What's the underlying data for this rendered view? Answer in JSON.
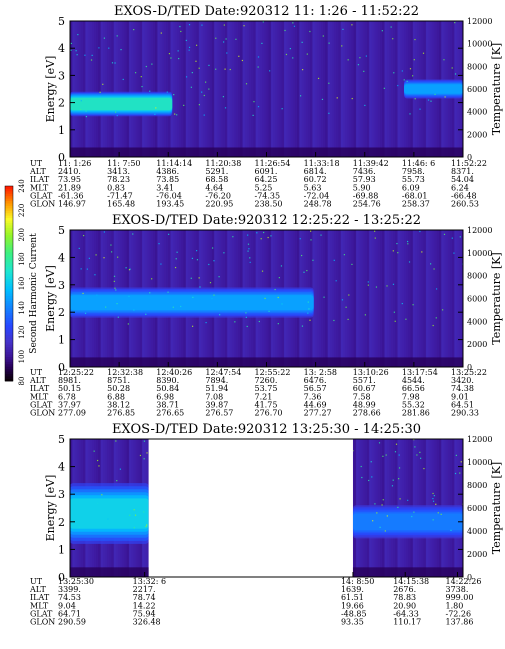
{
  "chart_data": [
    {
      "type": "heatmap",
      "title": "EXOS-D/TED  Date:920312  11: 1:26 - 11:52:22",
      "ylabel_left": "Energy [eV]",
      "ylabel_right": "Temperature [K]",
      "ylim_left": [
        0,
        5
      ],
      "yticks_left": [
        "0",
        "1",
        "2",
        "3",
        "4",
        "5"
      ],
      "ylim_right": [
        0,
        12000
      ],
      "yticks_right": [
        "0",
        "2000",
        "4000",
        "6000",
        "8000",
        "10000",
        "12000"
      ],
      "time_fraction_start": 0,
      "time_fraction_end": 1,
      "table_row_labels": [
        "UT",
        "ALT",
        "ILAT",
        "MLT",
        "GLAT",
        "GLON"
      ],
      "table_columns": [
        [
          "11: 1:26",
          "2410.",
          "73.95",
          "21.89",
          "-61.36",
          "146.97"
        ],
        [
          "11: 7:50",
          "3413.",
          "78.23",
          "0.83",
          "-71.47",
          "165.48"
        ],
        [
          "11:14:14",
          "4386.",
          "73.85",
          "3.41",
          "-76.04",
          "193.45"
        ],
        [
          "11:20:38",
          "5291.",
          "68.58",
          "4.64",
          "-76.20",
          "220.95"
        ],
        [
          "11:26:54",
          "6091.",
          "64.25",
          "5.25",
          "-74.35",
          "238.50"
        ],
        [
          "11:33:18",
          "6814.",
          "60.72",
          "5.63",
          "-72.04",
          "248.78"
        ],
        [
          "11:39:42",
          "7436.",
          "57.93",
          "5.90",
          "-69.88",
          "254.76"
        ],
        [
          "11:46: 6",
          "7958.",
          "55.73",
          "6.09",
          "-68.01",
          "258.37"
        ],
        [
          "11:52:22",
          "8371.",
          "54.04",
          "6.24",
          "-66.48",
          "260.53"
        ]
      ],
      "features": [
        {
          "t0": 0.0,
          "t1": 0.26,
          "center_ev": 1.95,
          "halfwidth_ev": 0.45,
          "level": 175
        },
        {
          "t0": 0.85,
          "t1": 1.0,
          "center_ev": 2.5,
          "halfwidth_ev": 0.35,
          "level": 150
        }
      ]
    },
    {
      "type": "heatmap",
      "title": "EXOS-D/TED  Date:920312  12:25:22 - 13:25:22",
      "ylabel_left": "Energy [eV]",
      "ylabel_right": "Temperature [K]",
      "ylim_left": [
        0,
        5
      ],
      "yticks_left": [
        "0",
        "1",
        "2",
        "3",
        "4",
        "5"
      ],
      "ylim_right": [
        0,
        12000
      ],
      "yticks_right": [
        "0",
        "2000",
        "4000",
        "6000",
        "8000",
        "10000",
        "12000"
      ],
      "time_fraction_start": 0,
      "time_fraction_end": 1,
      "table_row_labels": [
        "UT",
        "ALT",
        "ILAT",
        "MLT",
        "GLAT",
        "GLON"
      ],
      "table_columns": [
        [
          "12:25:22",
          "8981.",
          "50.15",
          "6.78",
          "37.97",
          "277.09"
        ],
        [
          "12:32:38",
          "8751.",
          "50.28",
          "6.88",
          "38.12",
          "276.85"
        ],
        [
          "12:40:26",
          "8390.",
          "50.84",
          "6.98",
          "38.71",
          "276.65"
        ],
        [
          "12:47:54",
          "7894.",
          "51.94",
          "7.08",
          "39.87",
          "276.57"
        ],
        [
          "12:55:22",
          "7260.",
          "53.75",
          "7.21",
          "41.75",
          "276.70"
        ],
        [
          "13: 2:58",
          "6476.",
          "56.57",
          "7.36",
          "44.69",
          "277.27"
        ],
        [
          "13:10:26",
          "5571.",
          "60.67",
          "7.58",
          "48.99",
          "278.66"
        ],
        [
          "13:17:54",
          "4544.",
          "66.56",
          "7.98",
          "55.32",
          "281.86"
        ],
        [
          "13:25:22",
          "3420.",
          "74.38",
          "9.01",
          "64.51",
          "290.33"
        ]
      ],
      "features": [
        {
          "t0": 0.0,
          "t1": 0.62,
          "center_ev": 2.35,
          "halfwidth_ev": 0.55,
          "level": 150
        }
      ]
    },
    {
      "type": "heatmap",
      "title": "EXOS-D/TED  Date:920312  13:25:30 - 14:25:30",
      "ylabel_left": "Energy [eV]",
      "ylabel_right": "Temperature [K]",
      "ylim_left": [
        0,
        5
      ],
      "yticks_left": [
        "0",
        "1",
        "2",
        "3",
        "4",
        "5"
      ],
      "ylim_right": [
        0,
        12000
      ],
      "yticks_right": [
        "0",
        "2000",
        "4000",
        "6000",
        "8000",
        "10000",
        "12000"
      ],
      "data_segments": [
        [
          0.0,
          0.2
        ],
        [
          0.72,
          1.0
        ]
      ],
      "table_row_labels": [
        "UT",
        "ALT",
        "ILAT",
        "MLT",
        "GLAT",
        "GLON"
      ],
      "table_columns": [
        [
          "13:25:30",
          "3399.",
          "74.53",
          "9.04",
          "64.71",
          "290.59"
        ],
        [
          "13:32: 6",
          "2217.",
          "78.74",
          "14.22",
          "75.94",
          "326.48"
        ],
        [
          "14: 8:50",
          "1639.",
          "61.51",
          "19.66",
          "-48.85",
          "93.35"
        ],
        [
          "14:15:38",
          "2676.",
          "78.83",
          "20.90",
          "-64.33",
          "110.17"
        ],
        [
          "14:22:26",
          "3738.",
          "999.00",
          "1.80",
          "-72.26",
          "137.86"
        ]
      ],
      "features": [
        {
          "t0": 0.0,
          "t1": 0.2,
          "center_ev": 2.3,
          "halfwidth_ev": 1.1,
          "level": 165
        },
        {
          "t0": 0.72,
          "t1": 1.0,
          "center_ev": 2.0,
          "halfwidth_ev": 0.6,
          "level": 140
        }
      ]
    }
  ],
  "colorbar": {
    "label": "Second Harmonic Current",
    "range": [
      80,
      240
    ],
    "ticks": [
      "80",
      "100",
      "120",
      "140",
      "160",
      "180",
      "200",
      "220",
      "240"
    ]
  }
}
